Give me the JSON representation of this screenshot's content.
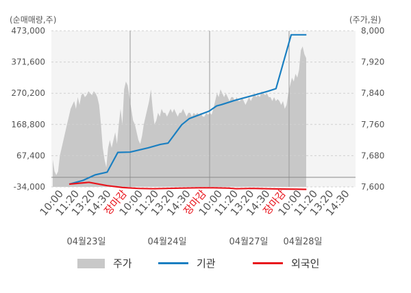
{
  "chart_data": {
    "type": "line",
    "left_axis_label": "(순매매량,주)",
    "right_axis_label": "(주가,원)",
    "left_axis_ticks": [
      "473,000",
      "371,600",
      "270,200",
      "168,800",
      "67,400",
      "-34,000"
    ],
    "right_axis_ticks": [
      "8,000",
      "7,920",
      "7,840",
      "7,760",
      "7,680",
      "7,600"
    ],
    "left_ylim": [
      -34000,
      473000
    ],
    "right_ylim": [
      7600,
      8000
    ],
    "x_ticks": [
      "10:00",
      "11:20",
      "13:20",
      "14:30",
      "장마감",
      "10:00",
      "11:20",
      "13:20",
      "14:30",
      "장마감",
      "10:00",
      "11:20",
      "13:20",
      "14:30",
      "장마감",
      "10:00",
      "11:20",
      "13:20",
      "14:30"
    ],
    "closing_label": "장마감",
    "date_labels": [
      "04월23일",
      "04월24일",
      "04월27일",
      "04월28일"
    ],
    "legend": [
      {
        "name": "주가",
        "color": "#c8c8c8",
        "kind": "area"
      },
      {
        "name": "기관",
        "color": "#1a7fc1",
        "kind": "line"
      },
      {
        "name": "외국인",
        "color": "#e8141c",
        "kind": "line"
      }
    ],
    "price_series": {
      "name": "주가",
      "values": [
        7670,
        7640,
        7630,
        7640,
        7680,
        7700,
        7720,
        7740,
        7760,
        7780,
        7800,
        7810,
        7820,
        7800,
        7830,
        7810,
        7835,
        7840,
        7830,
        7835,
        7845,
        7840,
        7835,
        7845,
        7840,
        7830,
        7810,
        7760,
        7700,
        7670,
        7650,
        7700,
        7720,
        7700,
        7720,
        7740,
        7710,
        7760,
        7800,
        7760,
        7850,
        7870,
        7860,
        7830,
        7800,
        7770,
        7760,
        7740,
        7720,
        7710,
        7730,
        7760,
        7780,
        7800,
        7820,
        7850,
        7800,
        7760,
        7770,
        7790,
        7780,
        7800,
        7790,
        7790,
        7780,
        7790,
        7800,
        7790,
        7800,
        7790,
        7780,
        7790,
        7790,
        7800,
        7790,
        7780,
        7790,
        7790,
        7780,
        7790,
        7785,
        7790,
        7785,
        7790,
        7780,
        7780,
        7790,
        7785,
        7790,
        7785,
        7800,
        7820,
        7840,
        7830,
        7850,
        7840,
        7830,
        7840,
        7830,
        7820,
        7830,
        7830,
        7820,
        7830,
        7820,
        7820,
        7830,
        7820,
        7810,
        7820,
        7830,
        7820,
        7830,
        7840,
        7830,
        7835,
        7830,
        7845,
        7840,
        7835,
        7840,
        7830,
        7830,
        7820,
        7830,
        7820,
        7825,
        7820,
        7810,
        7820,
        7800,
        7810,
        7840,
        7860,
        7880,
        7870,
        7890,
        7880,
        7900,
        7950,
        7960,
        7940,
        7930
      ]
    },
    "institution_series": {
      "name": "기관",
      "points": [
        [
          0,
          -25000
        ],
        [
          0.09,
          -13000
        ],
        [
          0.17,
          5000
        ],
        [
          0.25,
          14000
        ],
        [
          0.32,
          78000
        ],
        [
          0.4,
          79000
        ],
        [
          0.52,
          93000
        ],
        [
          0.6,
          104000
        ],
        [
          0.65,
          108000
        ],
        [
          0.74,
          168000
        ],
        [
          0.79,
          188000
        ],
        [
          0.92,
          212000
        ],
        [
          0.97,
          229000
        ],
        [
          1.0,
          233000
        ],
        [
          1.09,
          247000
        ],
        [
          1.2,
          262000
        ],
        [
          1.31,
          277000
        ],
        [
          1.36,
          285000
        ],
        [
          1.46,
          460000
        ],
        [
          1.56,
          460000
        ]
      ]
    },
    "foreign_series": {
      "name": "외국인",
      "points": [
        [
          0,
          -25000
        ],
        [
          0.13,
          -19000
        ],
        [
          0.25,
          -30000
        ],
        [
          0.35,
          -36000
        ],
        [
          0.45,
          -39000
        ],
        [
          0.55,
          -40000
        ],
        [
          0.65,
          -39000
        ],
        [
          0.72,
          -38000
        ],
        [
          0.85,
          -37000
        ],
        [
          0.95,
          -37000
        ],
        [
          1.05,
          -38000
        ],
        [
          1.1,
          -40000
        ],
        [
          1.2,
          -39000
        ],
        [
          1.3,
          -40000
        ],
        [
          1.4,
          -41000
        ],
        [
          1.5,
          -41500
        ],
        [
          1.56,
          -42000
        ]
      ]
    }
  },
  "colors": {
    "area": "#c8c8c8",
    "institution": "#1a7fc1",
    "foreign": "#e8141c",
    "grid": "#d0d0d0",
    "text": "#555555"
  }
}
